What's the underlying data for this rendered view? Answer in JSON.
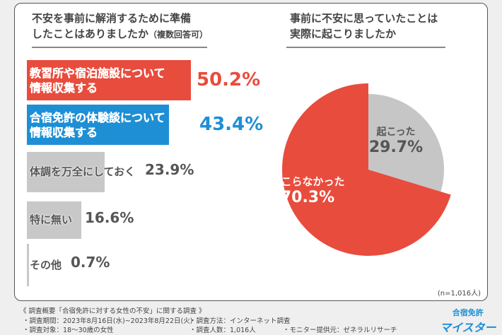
{
  "chart_data": [
    {
      "type": "bar",
      "title": "不安を事前に解消するために準備したことはありましたか",
      "title_note": "（複数回答可）",
      "categories": [
        "教習所や宿泊施設について情報収集する",
        "合宿免許の体験談について情報収集する",
        "体調を万全にしておく",
        "特に無い",
        "その他"
      ],
      "label_lines": [
        [
          "教習所や宿泊施設について",
          "情報収集する"
        ],
        [
          "合宿免許の体験談について",
          "情報収集する"
        ],
        [
          "体調を万全にしておく"
        ],
        [
          "特に無い"
        ],
        [
          "その他"
        ]
      ],
      "values": [
        50.2,
        43.4,
        23.9,
        16.6,
        0.7
      ],
      "value_labels": [
        "50.2%",
        "43.4%",
        "23.9%",
        "16.6%",
        "0.7%"
      ],
      "colors": [
        "#e84c3d",
        "#1e8fd5",
        "#c8c8c8",
        "#c8c8c8",
        "#c8c8c8"
      ],
      "unit": "%",
      "xlim": [
        0,
        100
      ]
    },
    {
      "type": "pie",
      "title": "事前に不安に思っていたことは実際に起こりましたか",
      "labels": [
        "起こった",
        "起こらなかった"
      ],
      "values": [
        29.7,
        70.3
      ],
      "value_labels": [
        "29.7%",
        "70.3%"
      ],
      "colors": [
        "#c6c6c6",
        "#e84c3d"
      ]
    }
  ],
  "titles": {
    "left1": "不安を事前に解消するために準備",
    "left2": "したことはありましたか",
    "left_note": "（複数回答可）",
    "right1": "事前に不安に思っていたことは",
    "right2": "実際に起こりましたか"
  },
  "n_note": "(n=1,016人)",
  "footer": {
    "heading": "《 調査概要「合宿免許に対する女性の不安」に関する調査 》",
    "period": "・調査期間：2023年8月16日(水)~2023年8月22日(火)",
    "method": "・調査方法：インターネット調査",
    "target": "・調査対象：18〜30歳の女性",
    "count": "・調査人数：1,016人",
    "provider": "・モニター提供元：ゼネラルリサーチ"
  },
  "logo": {
    "top": "合宿免許",
    "bottom": "マイスター"
  }
}
